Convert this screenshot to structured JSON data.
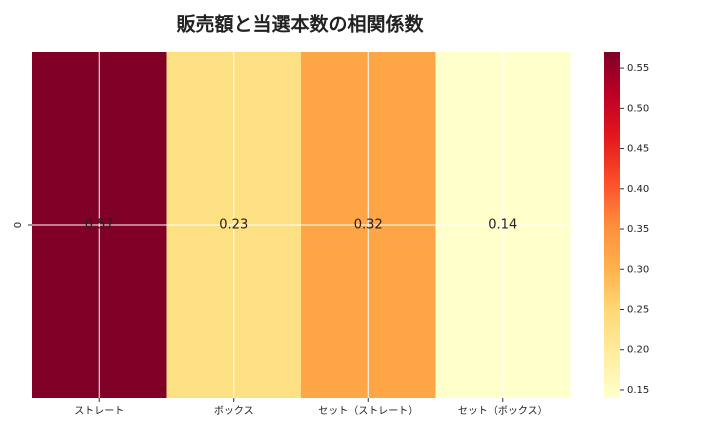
{
  "chart_data": {
    "type": "heatmap",
    "title": "販売額と当選本数の相関係数",
    "categories": [
      "ストレート",
      "ボックス",
      "セット（ストレート）",
      "セット（ボックス）"
    ],
    "row_labels": [
      "0"
    ],
    "values": [
      0.57,
      0.23,
      0.32,
      0.14
    ],
    "zlim": [
      0.14,
      0.57
    ],
    "zticks": [
      0.15,
      {
        "value": 0.2,
        "label": "0.20"
      },
      0.25,
      {
        "value": 0.3,
        "label": "0.30"
      },
      0.35,
      {
        "value": 0.4,
        "label": "0.40"
      },
      0.45,
      {
        "value": 0.5,
        "label": "0.50"
      },
      0.55
    ],
    "colorscale": [
      "#ffffcc",
      "#ffeda0",
      "#fed976",
      "#feb24c",
      "#fd8d3c",
      "#fc4e2a",
      "#e31a1c",
      "#bd0026",
      "#800026"
    ],
    "grid": true
  }
}
